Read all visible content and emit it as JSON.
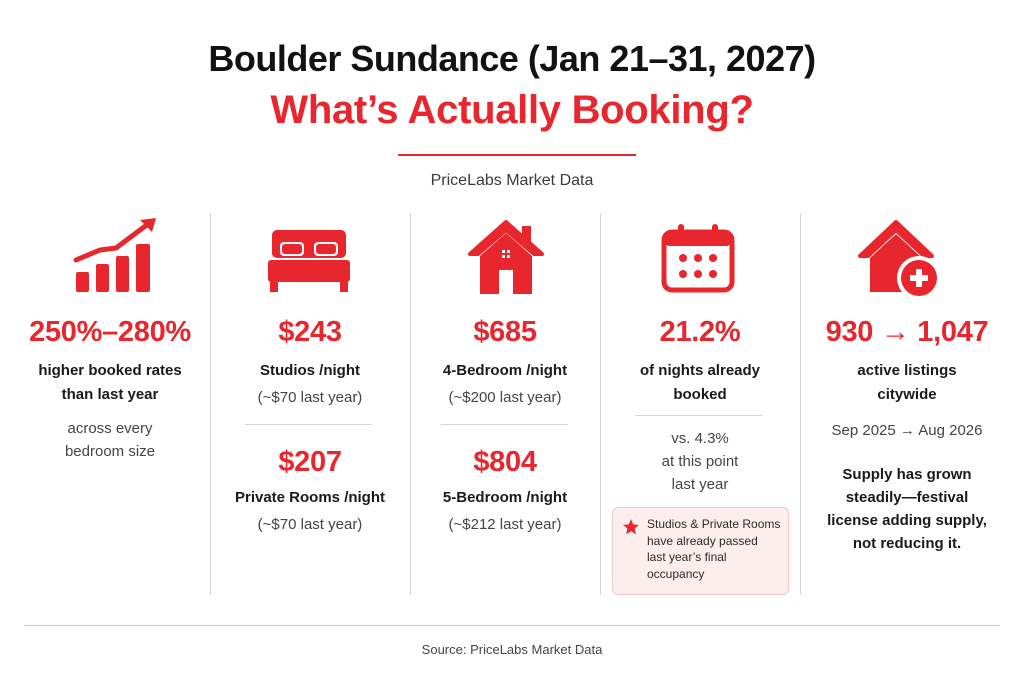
{
  "header": {
    "title": "Boulder Sundance (Jan 21–31, 2027)",
    "subtitle": "What’s Actually Booking?",
    "source_line": "PriceLabs Market Data"
  },
  "columns": {
    "rates": {
      "icon": "bar-chart-trending-up-icon",
      "value": "250%–280%",
      "label_line1": "higher booked rates",
      "label_line2": "than last year",
      "note_line1": "across every",
      "note_line2": "bedroom size"
    },
    "studios": {
      "icon": "bed-icon",
      "value1": "$243",
      "label1": "Studios /night",
      "note1": "(~$70 last year)",
      "value2": "$207",
      "label2": "Private Rooms /night",
      "note2": "(~$70 last year)"
    },
    "bedrooms": {
      "icon": "house-icon",
      "value1": "$685",
      "label1": "4-Bedroom /night",
      "note1": "(~$200 last year)",
      "value2": "$804",
      "label2": "5-Bedroom /night",
      "note2": "(~$212 last year)"
    },
    "booked": {
      "icon": "calendar-icon",
      "value": "21.2%",
      "label_line1": "of nights already",
      "label_line2": "booked",
      "note_line1": "vs. 4.3%",
      "note_line2": "at this point",
      "note_line3": "last year",
      "callout_icon": "star-icon",
      "callout_line1": "Studios & Private Rooms",
      "callout_line2": "have already passed",
      "callout_line3": "last year’s final",
      "callout_line4": "occupancy"
    },
    "listings": {
      "icon": "house-plus-icon",
      "value": "930 → 1,047",
      "label_line1": "active listings",
      "label_line2": "citywide",
      "period": "Sep 2025 → Aug 2026",
      "note_line1": "Supply has grown",
      "note_line2": "steadily—festival",
      "note_line3": "license adding supply,",
      "note_line4": "not reducing it."
    }
  },
  "footer": {
    "source": "Source: PriceLabs Market Data"
  },
  "colors": {
    "accent": "#e8262d",
    "text": "#1a1a1a",
    "divider": "#d6d6d6",
    "callout_bg": "#fdeeee"
  }
}
